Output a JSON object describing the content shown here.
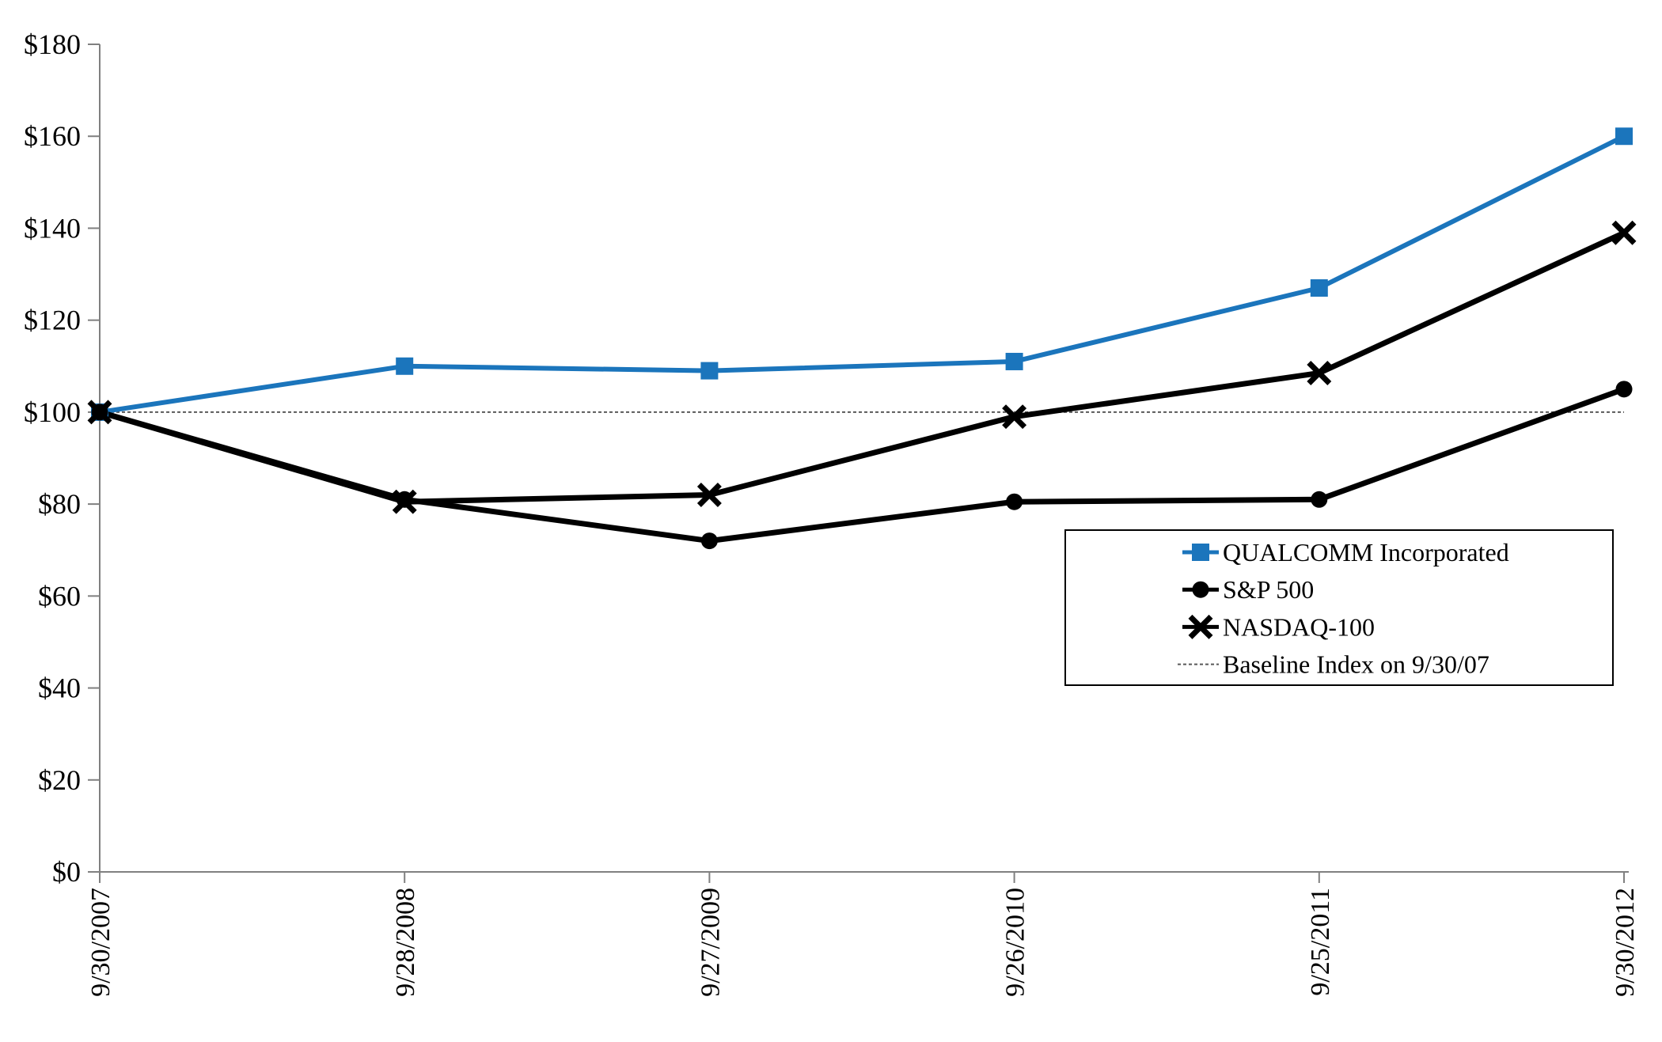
{
  "chart_data": {
    "type": "line",
    "title": "",
    "xlabel": "",
    "ylabel": "",
    "categories": [
      "9/30/2007",
      "9/28/2008",
      "9/27/2009",
      "9/26/2010",
      "9/25/2011",
      "9/30/2012"
    ],
    "series": [
      {
        "id": "qualcomm",
        "name": "QUALCOMM Incorporated",
        "values": [
          100,
          110,
          109,
          111,
          127,
          160
        ],
        "color": "#1B75BC",
        "marker": "square",
        "line_width": 6
      },
      {
        "id": "sp500",
        "name": "S&P 500",
        "values": [
          100,
          81,
          72,
          80.5,
          81,
          105
        ],
        "color": "#000000",
        "marker": "circle",
        "line_width": 7
      },
      {
        "id": "nasdaq100",
        "name": "NASDAQ-100",
        "values": [
          100,
          80.5,
          82,
          99,
          108.5,
          139
        ],
        "color": "#000000",
        "marker": "x",
        "line_width": 7
      }
    ],
    "baseline": {
      "label": "Baseline Index on 9/30/07",
      "value": 100,
      "color": "#595959",
      "style": "dotted"
    },
    "ylim": [
      0,
      180
    ],
    "y_ticks": [
      {
        "value": 0,
        "label": "$0"
      },
      {
        "value": 20,
        "label": "$20"
      },
      {
        "value": 40,
        "label": "$40"
      },
      {
        "value": 60,
        "label": "$60"
      },
      {
        "value": 80,
        "label": "$80"
      },
      {
        "value": 100,
        "label": "$100"
      },
      {
        "value": 120,
        "label": "$120"
      },
      {
        "value": 140,
        "label": "$140"
      },
      {
        "value": 160,
        "label": "$160"
      },
      {
        "value": 180,
        "label": "$180"
      }
    ],
    "grid": false,
    "legend_position": "inside-right-below-center",
    "legend": [
      {
        "type": "series",
        "series_id": "qualcomm",
        "label": "QUALCOMM Incorporated"
      },
      {
        "type": "series",
        "series_id": "sp500",
        "label": "S&P 500"
      },
      {
        "type": "series",
        "series_id": "nasdaq100",
        "label": "NASDAQ-100"
      },
      {
        "type": "baseline",
        "label": "Baseline Index on 9/30/07"
      }
    ],
    "axis_color": "#808080"
  }
}
